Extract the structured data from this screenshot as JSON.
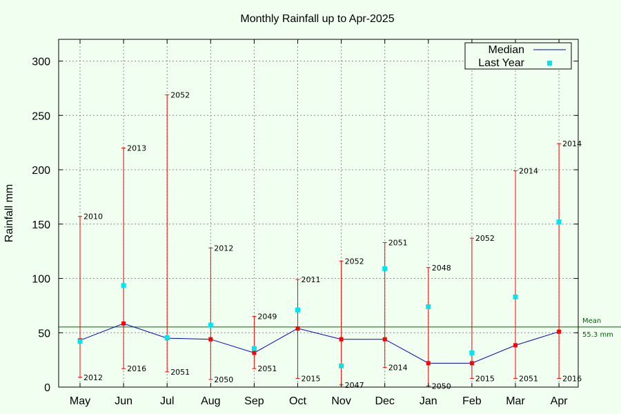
{
  "chart_data": {
    "type": "line",
    "title": "Monthly Rainfall up to Apr-2025",
    "ylabel": "Rainfall mm",
    "xlabel": "",
    "ylim": [
      0,
      320
    ],
    "yticks": [
      0,
      50,
      100,
      150,
      200,
      250,
      300
    ],
    "grid": true,
    "legend_position": "top-right",
    "categories": [
      "May",
      "Jun",
      "Jul",
      "Aug",
      "Sep",
      "Oct",
      "Nov",
      "Dec",
      "Jan",
      "Feb",
      "Mar",
      "Apr"
    ],
    "series": [
      {
        "name": "Median",
        "color": "#0000cd",
        "values": [
          43,
          58.5,
          45,
          44,
          31.5,
          54,
          44,
          44,
          22,
          22,
          38.5,
          51
        ]
      },
      {
        "name": "Last Year",
        "color": "#00e5ee",
        "values": [
          42,
          93.5,
          45.5,
          57,
          35.5,
          71,
          19.5,
          109,
          74,
          31.5,
          83,
          152
        ]
      }
    ],
    "range_bars": {
      "color": "#ff0000",
      "max": [
        157,
        220,
        269,
        128,
        65,
        99,
        116,
        133,
        110,
        137,
        199,
        224
      ],
      "max_year": [
        "2010",
        "2013",
        "2052",
        "2012",
        "2049",
        "2011",
        "2052",
        "2051",
        "2048",
        "2052",
        "2014",
        "2014"
      ],
      "min": [
        9,
        17,
        14,
        7,
        17,
        8,
        2,
        18,
        1,
        8,
        8,
        8
      ],
      "min_year": [
        "2012",
        "2016",
        "2051",
        "2050",
        "2051",
        "2015",
        "2047",
        "2014",
        "2050",
        "2015",
        "2051",
        "2016"
      ]
    },
    "mean": {
      "value": 55.3,
      "label": "Mean",
      "value_label": "55.3 mm",
      "color": "#006400"
    }
  }
}
